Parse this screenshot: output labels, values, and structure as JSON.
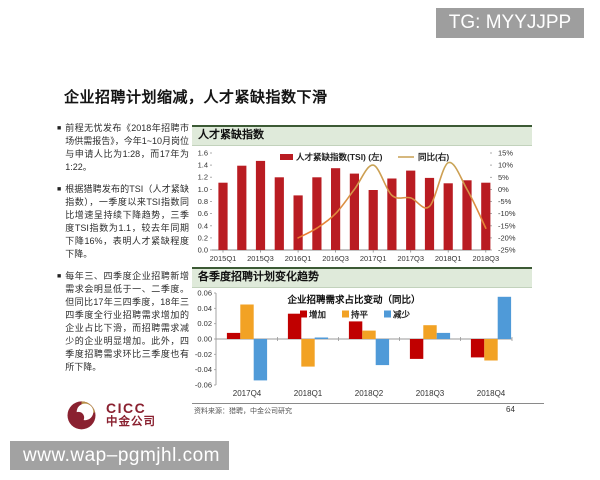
{
  "colors": {
    "bar_red": "#b91c22",
    "yoy_line_top": "#c7a558",
    "yoy_line_bottom": "#ed7d31",
    "increase_red": "#c00000",
    "flat_orange": "#f2a224",
    "decrease_blue": "#4f9ad8",
    "panel_header_bg": "#dfeada",
    "panel_header_border": "#3c5a35",
    "brand_maroon": "#8a2130",
    "brand_gold": "#b89048",
    "banner_gray": "#9e9e9e"
  },
  "overlays": {
    "tg_banner": "TG: MYYJJPP",
    "url_banner": "www.wap–pgmjhl.com"
  },
  "slide": {
    "title": "企业招聘计划缩减，人才紧缺指数下滑",
    "bullets": [
      "前程无忧发布《2018年招聘市场供需报告》，今年1~10月岗位与申请人比为1:28，而17年为1:22。",
      "根据猎聘发布的TSI（人才紧缺指数），一季度以来TSI指数同比增速呈持续下降趋势，三季度TSI指数为1.1，较去年同期下降16%，表明人才紧缺程度下降。",
      "每年三、四季度企业招聘新增需求会明显低于一、二季度。但同比17年三四季度，18年三四季度全行业招聘需求增加的企业占比下滑，而招聘需求减少的企业明显增加。此外，四季度招聘需求环比三季度也有所下降。"
    ],
    "logo": {
      "en": "CICC",
      "cn": "中金公司"
    },
    "footer": {
      "source": "资料来源：猎聘，中金公司研究",
      "page": "64"
    }
  },
  "chart_data": [
    {
      "type": "bar+line",
      "panel_title": "人才紧缺指数",
      "categories": [
        "2015Q1",
        "2015Q2",
        "2015Q3",
        "2015Q4",
        "2016Q1",
        "2016Q2",
        "2016Q3",
        "2016Q4",
        "2017Q1",
        "2017Q2",
        "2017Q3",
        "2017Q4",
        "2018Q1",
        "2018Q2",
        "2018Q3"
      ],
      "x_tick_labels": [
        "2015Q1",
        "2015Q3",
        "2016Q1",
        "2016Q3",
        "2017Q1",
        "2017Q3",
        "2018Q1",
        "2018Q3"
      ],
      "series": [
        {
          "name": "人才紧缺指数(TSI) (左)",
          "type": "bar",
          "axis": "left",
          "color": "#b91c22",
          "values": [
            1.11,
            1.39,
            1.47,
            1.2,
            0.9,
            1.2,
            1.35,
            1.26,
            0.99,
            1.18,
            1.31,
            1.19,
            1.1,
            1.15,
            1.11
          ]
        },
        {
          "name": "同比(右)",
          "type": "line",
          "axis": "right",
          "color": "#c9a152",
          "values": [
            null,
            null,
            null,
            null,
            -20,
            -16,
            -10,
            0,
            10,
            -2.5,
            -3.5,
            -7,
            11,
            0,
            -16
          ]
        }
      ],
      "left_axis": {
        "min": 0,
        "max": 1.6,
        "step": 0.2
      },
      "right_axis": {
        "min": -25,
        "max": 15,
        "step": 5,
        "suffix": "%"
      },
      "grid": false,
      "legend_position": "top"
    },
    {
      "type": "bar",
      "panel_title": "各季度招聘计划变化趋势",
      "title": "企业招聘需求占比变动（同比）",
      "categories": [
        "2017Q4",
        "2018Q1",
        "2018Q2",
        "2018Q3",
        "2018Q4"
      ],
      "series": [
        {
          "name": "增加",
          "color": "#c00000",
          "values": [
            0.008,
            0.033,
            0.023,
            -0.026,
            -0.024
          ]
        },
        {
          "name": "持平",
          "color": "#f2a224",
          "values": [
            0.045,
            -0.036,
            0.011,
            0.018,
            -0.028
          ]
        },
        {
          "name": "减少",
          "color": "#4f9ad8",
          "values": [
            -0.054,
            0.002,
            -0.034,
            0.008,
            0.055
          ]
        }
      ],
      "y_axis": {
        "min": -0.06,
        "max": 0.06,
        "step": 0.02
      },
      "grid": false,
      "legend_position": "top"
    }
  ]
}
